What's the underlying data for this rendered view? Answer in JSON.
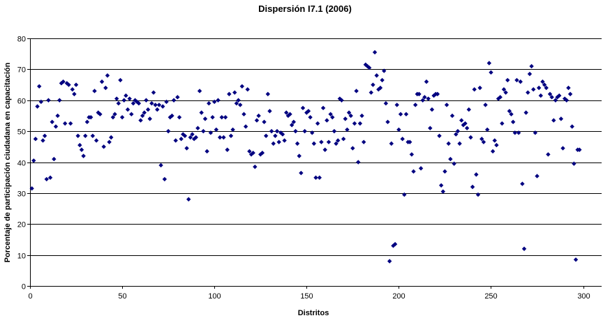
{
  "chart_data": {
    "type": "scatter",
    "title": "Dispersión I7.1 (2006)",
    "xlabel": "Distritos",
    "ylabel": "Porcentaje de participación ciudadana en capacitación",
    "xlim": [
      0,
      310
    ],
    "ylim": [
      0,
      80
    ],
    "xticks": [
      0,
      50,
      100,
      150,
      200,
      250,
      300
    ],
    "yticks": [
      0,
      10,
      20,
      30,
      40,
      50,
      60,
      70,
      80
    ],
    "grid": "horizontal",
    "legend": "none",
    "marker_color": "#000080",
    "marker": "diamond",
    "points": [
      [
        1,
        31.5
      ],
      [
        2,
        40.5
      ],
      [
        3,
        47.5
      ],
      [
        4,
        58
      ],
      [
        5,
        64.5
      ],
      [
        6,
        59.5
      ],
      [
        7,
        47
      ],
      [
        8,
        48.5
      ],
      [
        9,
        34.5
      ],
      [
        10,
        60
      ],
      [
        11,
        35
      ],
      [
        12,
        53
      ],
      [
        13,
        41
      ],
      [
        14,
        51.5
      ],
      [
        15,
        55
      ],
      [
        16,
        60
      ],
      [
        17,
        65.5
      ],
      [
        18,
        66
      ],
      [
        19,
        52.5
      ],
      [
        20,
        65.5
      ],
      [
        21,
        65
      ],
      [
        22,
        52.5
      ],
      [
        23,
        63.5
      ],
      [
        24,
        62
      ],
      [
        25,
        65
      ],
      [
        26,
        48.5
      ],
      [
        27,
        45.5
      ],
      [
        28,
        44
      ],
      [
        29,
        42
      ],
      [
        30,
        48.5
      ],
      [
        31,
        53
      ],
      [
        32,
        54.5
      ],
      [
        33,
        54.5
      ],
      [
        34,
        48.5
      ],
      [
        35,
        63
      ],
      [
        36,
        47
      ],
      [
        37,
        56
      ],
      [
        38,
        55.5
      ],
      [
        39,
        66
      ],
      [
        40,
        45
      ],
      [
        41,
        64
      ],
      [
        42,
        68
      ],
      [
        43,
        46.5
      ],
      [
        44,
        48
      ],
      [
        45,
        54.5
      ],
      [
        46,
        55.5
      ],
      [
        47,
        60.5
      ],
      [
        48,
        59
      ],
      [
        49,
        66.5
      ],
      [
        50,
        54.5
      ],
      [
        51,
        60
      ],
      [
        52,
        61.5
      ],
      [
        53,
        57
      ],
      [
        54,
        60.5
      ],
      [
        55,
        55.5
      ],
      [
        56,
        59
      ],
      [
        57,
        60
      ],
      [
        58,
        59.5
      ],
      [
        59,
        59
      ],
      [
        60,
        53.5
      ],
      [
        61,
        55
      ],
      [
        62,
        56
      ],
      [
        63,
        60
      ],
      [
        64,
        57
      ],
      [
        65,
        54
      ],
      [
        66,
        59
      ],
      [
        67,
        62.5
      ],
      [
        68,
        58.5
      ],
      [
        69,
        57
      ],
      [
        70,
        58.5
      ],
      [
        71,
        39
      ],
      [
        72,
        58
      ],
      [
        73,
        34.5
      ],
      [
        74,
        59.5
      ],
      [
        75,
        50
      ],
      [
        76,
        54.5
      ],
      [
        77,
        55
      ],
      [
        78,
        60
      ],
      [
        79,
        47
      ],
      [
        80,
        61
      ],
      [
        81,
        54.5
      ],
      [
        82,
        47.5
      ],
      [
        83,
        49
      ],
      [
        84,
        48.5
      ],
      [
        85,
        44.5
      ],
      [
        86,
        28
      ],
      [
        87,
        48
      ],
      [
        88,
        49
      ],
      [
        89,
        47.5
      ],
      [
        90,
        48
      ],
      [
        91,
        51
      ],
      [
        92,
        63
      ],
      [
        93,
        56
      ],
      [
        94,
        50
      ],
      [
        95,
        54
      ],
      [
        96,
        43.5
      ],
      [
        97,
        59
      ],
      [
        98,
        49.5
      ],
      [
        99,
        54.5
      ],
      [
        100,
        59.5
      ],
      [
        101,
        50.5
      ],
      [
        102,
        60
      ],
      [
        103,
        48
      ],
      [
        104,
        54.5
      ],
      [
        105,
        48
      ],
      [
        106,
        54.5
      ],
      [
        107,
        44
      ],
      [
        108,
        62
      ],
      [
        109,
        48.5
      ],
      [
        110,
        50.5
      ],
      [
        111,
        62.5
      ],
      [
        112,
        59
      ],
      [
        113,
        60
      ],
      [
        114,
        58.5
      ],
      [
        115,
        64.5
      ],
      [
        116,
        55.5
      ],
      [
        117,
        51.5
      ],
      [
        118,
        63.5
      ],
      [
        119,
        43.5
      ],
      [
        120,
        42.5
      ],
      [
        121,
        43
      ],
      [
        122,
        38.5
      ],
      [
        123,
        53.5
      ],
      [
        124,
        55
      ],
      [
        125,
        42.5
      ],
      [
        126,
        43
      ],
      [
        127,
        53
      ],
      [
        128,
        48.5
      ],
      [
        129,
        62
      ],
      [
        130,
        56.5
      ],
      [
        131,
        50
      ],
      [
        132,
        46
      ],
      [
        133,
        48.5
      ],
      [
        134,
        50
      ],
      [
        135,
        46.5
      ],
      [
        136,
        49.5
      ],
      [
        137,
        49
      ],
      [
        138,
        47
      ],
      [
        139,
        56
      ],
      [
        140,
        55
      ],
      [
        141,
        55.5
      ],
      [
        142,
        52
      ],
      [
        143,
        53
      ],
      [
        144,
        50
      ],
      [
        145,
        46
      ],
      [
        146,
        42
      ],
      [
        147,
        36.5
      ],
      [
        148,
        57.5
      ],
      [
        149,
        50
      ],
      [
        150,
        56
      ],
      [
        151,
        56.5
      ],
      [
        152,
        54.5
      ],
      [
        153,
        49.5
      ],
      [
        154,
        46
      ],
      [
        155,
        35
      ],
      [
        156,
        52.5
      ],
      [
        157,
        35
      ],
      [
        158,
        46.5
      ],
      [
        159,
        57.5
      ],
      [
        160,
        44
      ],
      [
        161,
        53.5
      ],
      [
        162,
        46.5
      ],
      [
        163,
        55.5
      ],
      [
        164,
        54.5
      ],
      [
        165,
        50
      ],
      [
        166,
        46
      ],
      [
        167,
        47
      ],
      [
        168,
        60.5
      ],
      [
        169,
        60
      ],
      [
        170,
        47.5
      ],
      [
        171,
        54
      ],
      [
        172,
        50.5
      ],
      [
        173,
        56
      ],
      [
        174,
        55
      ],
      [
        175,
        44.5
      ],
      [
        176,
        52.5
      ],
      [
        177,
        63
      ],
      [
        178,
        40
      ],
      [
        179,
        52.5
      ],
      [
        180,
        55
      ],
      [
        181,
        46.5
      ],
      [
        182,
        71.5
      ],
      [
        183,
        71
      ],
      [
        184,
        70.5
      ],
      [
        185,
        62.5
      ],
      [
        186,
        65
      ],
      [
        187,
        75.5
      ],
      [
        188,
        68
      ],
      [
        189,
        63.5
      ],
      [
        190,
        64
      ],
      [
        191,
        66.5
      ],
      [
        192,
        69.5
      ],
      [
        193,
        59
      ],
      [
        194,
        53
      ],
      [
        195,
        8
      ],
      [
        196,
        46
      ],
      [
        197,
        13
      ],
      [
        198,
        13.5
      ],
      [
        199,
        58.5
      ],
      [
        200,
        50.5
      ],
      [
        201,
        55.5
      ],
      [
        202,
        47.5
      ],
      [
        203,
        29.5
      ],
      [
        204,
        55.5
      ],
      [
        205,
        46.5
      ],
      [
        206,
        46.5
      ],
      [
        207,
        42.5
      ],
      [
        208,
        37
      ],
      [
        209,
        58.5
      ],
      [
        210,
        62
      ],
      [
        211,
        62
      ],
      [
        212,
        38
      ],
      [
        213,
        60
      ],
      [
        214,
        61
      ],
      [
        215,
        66
      ],
      [
        216,
        60.5
      ],
      [
        217,
        51
      ],
      [
        218,
        57
      ],
      [
        219,
        61.5
      ],
      [
        220,
        62
      ],
      [
        221,
        62
      ],
      [
        222,
        48.5
      ],
      [
        223,
        32.5
      ],
      [
        224,
        30.5
      ],
      [
        225,
        37
      ],
      [
        226,
        58.5
      ],
      [
        227,
        46
      ],
      [
        228,
        41
      ],
      [
        229,
        55
      ],
      [
        230,
        39.5
      ],
      [
        231,
        49
      ],
      [
        232,
        50
      ],
      [
        233,
        46
      ],
      [
        234,
        53.5
      ],
      [
        235,
        52
      ],
      [
        236,
        52.5
      ],
      [
        237,
        51
      ],
      [
        238,
        57
      ],
      [
        239,
        48
      ],
      [
        240,
        32
      ],
      [
        241,
        63.5
      ],
      [
        242,
        36
      ],
      [
        243,
        29.5
      ],
      [
        244,
        64
      ],
      [
        245,
        47.5
      ],
      [
        246,
        46.5
      ],
      [
        247,
        58.5
      ],
      [
        248,
        50.5
      ],
      [
        249,
        72
      ],
      [
        250,
        69
      ],
      [
        251,
        43.5
      ],
      [
        252,
        47
      ],
      [
        253,
        45.5
      ],
      [
        254,
        60.5
      ],
      [
        255,
        61
      ],
      [
        256,
        52.5
      ],
      [
        257,
        63.5
      ],
      [
        258,
        62.5
      ],
      [
        259,
        66.5
      ],
      [
        260,
        56.5
      ],
      [
        261,
        55.5
      ],
      [
        262,
        53
      ],
      [
        263,
        49.5
      ],
      [
        264,
        66.5
      ],
      [
        265,
        49.5
      ],
      [
        266,
        66
      ],
      [
        267,
        33
      ],
      [
        268,
        12
      ],
      [
        269,
        56
      ],
      [
        270,
        62.5
      ],
      [
        271,
        68.5
      ],
      [
        272,
        71
      ],
      [
        273,
        63.5
      ],
      [
        274,
        49.5
      ],
      [
        275,
        35.5
      ],
      [
        276,
        64
      ],
      [
        277,
        61.5
      ],
      [
        278,
        66
      ],
      [
        279,
        65
      ],
      [
        280,
        64
      ],
      [
        281,
        42.5
      ],
      [
        282,
        62
      ],
      [
        283,
        61
      ],
      [
        284,
        53.5
      ],
      [
        285,
        60
      ],
      [
        286,
        61
      ],
      [
        287,
        61.5
      ],
      [
        288,
        54
      ],
      [
        289,
        44.5
      ],
      [
        290,
        60.5
      ],
      [
        291,
        60
      ],
      [
        292,
        64
      ],
      [
        293,
        62
      ],
      [
        294,
        51.5
      ],
      [
        295,
        39.5
      ],
      [
        296,
        8.5
      ],
      [
        297,
        44
      ],
      [
        298,
        44
      ]
    ]
  }
}
